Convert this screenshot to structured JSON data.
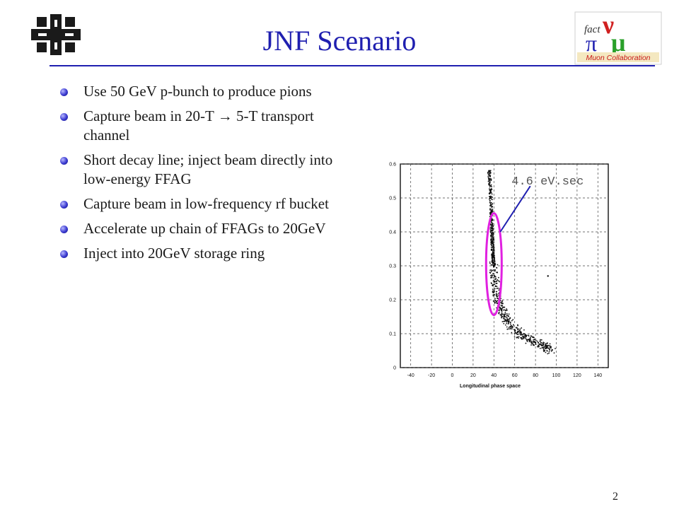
{
  "slide": {
    "title": "JNF Scenario",
    "page_number": "2",
    "accent_color": "#1f1fb0",
    "bullets": [
      "Use 50 GeV p-bunch to produce pions",
      "Capture beam in 20-T → 5-T transport channel",
      "Short decay line; inject beam directly into low-energy FFAG",
      "Capture beam in low-frequency rf bucket",
      "Accelerate up chain of FFAGs to 20GeV",
      "Inject into 20GeV storage ring"
    ],
    "logos": {
      "left": "fermilab-logo",
      "right": {
        "name": "muon-collaboration-logo",
        "text": "Muon Collaboration",
        "fact": "fact",
        "nu": "ν",
        "mu": "μ",
        "pi": "π"
      }
    }
  },
  "chart_data": {
    "type": "scatter",
    "xlabel": "Longitudinal phase space",
    "ylabel": "",
    "xlim": [
      -50,
      150
    ],
    "ylim": [
      0,
      0.6
    ],
    "x_ticks": [
      "-40",
      "-20",
      "0",
      "20",
      "40",
      "60",
      "80",
      "100",
      "120",
      "140"
    ],
    "y_ticks": [
      "0",
      "0.1",
      "0.2",
      "0.3",
      "0.4",
      "0.5",
      "0.6"
    ],
    "grid": true,
    "annotation": "4.6 eV.sec",
    "annotation_color": "#1f1fb0",
    "ellipse_color": "#e020e0",
    "ellipse": {
      "cx": 40,
      "cy": 0.305,
      "rx": 7.5,
      "ry": 0.15
    },
    "points": [
      [
        35.5,
        0.58
      ],
      [
        36.8,
        0.52
      ],
      [
        37.5,
        0.46
      ],
      [
        38.1,
        0.41
      ],
      [
        38.6,
        0.37
      ],
      [
        39.2,
        0.33
      ],
      [
        39.8,
        0.3
      ],
      [
        40.6,
        0.27
      ],
      [
        41.6,
        0.24
      ],
      [
        43,
        0.21
      ],
      [
        45,
        0.19
      ],
      [
        47.5,
        0.17
      ],
      [
        50.5,
        0.15
      ],
      [
        54,
        0.135
      ],
      [
        58,
        0.12
      ],
      [
        63,
        0.105
      ],
      [
        68,
        0.092
      ],
      [
        74,
        0.082
      ],
      [
        80,
        0.074
      ],
      [
        86,
        0.066
      ],
      [
        91,
        0.059
      ],
      [
        96,
        0.052
      ],
      [
        92,
        0.27
      ]
    ]
  }
}
